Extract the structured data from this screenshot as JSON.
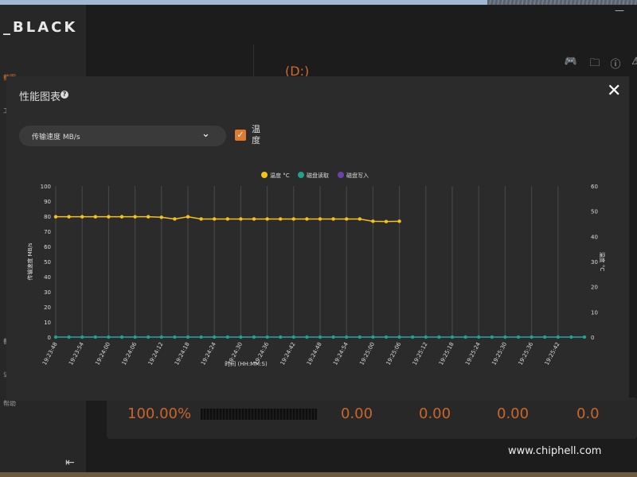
{
  "app": {
    "brand": "_BLACK",
    "side_items": [
      "截图",
      "工",
      "截",
      "记",
      "帮助"
    ],
    "drive": "(D:)",
    "results": [
      "100.00%",
      "0.00",
      "0.00",
      "0.00",
      "0.0"
    ],
    "watermark": "www.chiphell.com",
    "watermark_logo": "chi hell"
  },
  "modal": {
    "title": "性能图表",
    "select_value": "传输速度 MB/s",
    "checkbox_label": "温度",
    "checkbox_checked": true
  },
  "chart_data": {
    "type": "line",
    "legend": [
      "温度 °C",
      "磁盘读取",
      "磁盘写入"
    ],
    "colors": {
      "temp": "#f5c21b",
      "read": "#1fa090",
      "write": "#6a3fb0"
    },
    "xlabel": "时间 (HH:MM:S)",
    "ylabel": "传输速度 MB/s",
    "y2label": "温度 °C",
    "ylim": [
      0,
      100
    ],
    "y2lim": [
      0,
      60
    ],
    "yticks": [
      0,
      10,
      20,
      30,
      40,
      50,
      60,
      70,
      80,
      90,
      100
    ],
    "y2ticks": [
      0,
      10,
      20,
      30,
      40,
      50,
      60
    ],
    "x_ticks": [
      "19:23:48",
      "19:23:54",
      "19:24:00",
      "19:24:06",
      "19:24:12",
      "19:24:18",
      "19:24:24",
      "19:24:30",
      "19:24:36",
      "19:24:42",
      "19:24:48",
      "19:24:54",
      "19:25:00",
      "19:25:06",
      "19:25:12",
      "19:25:18",
      "19:25:24",
      "19:25:30",
      "19:25:36",
      "19:25:42"
    ],
    "point_count": 41,
    "temp_series": [
      47.8,
      47.8,
      47.8,
      47.8,
      47.8,
      47.8,
      47.8,
      47.8,
      47.6,
      46.9,
      47.8,
      46.9,
      46.9,
      46.9,
      46.9,
      46.9,
      46.9,
      46.9,
      46.9,
      46.9,
      46.9,
      46.9,
      46.9,
      46.9,
      46.0,
      45.9,
      46.0
    ],
    "read_series_value": 0,
    "write_series_value": 0
  }
}
